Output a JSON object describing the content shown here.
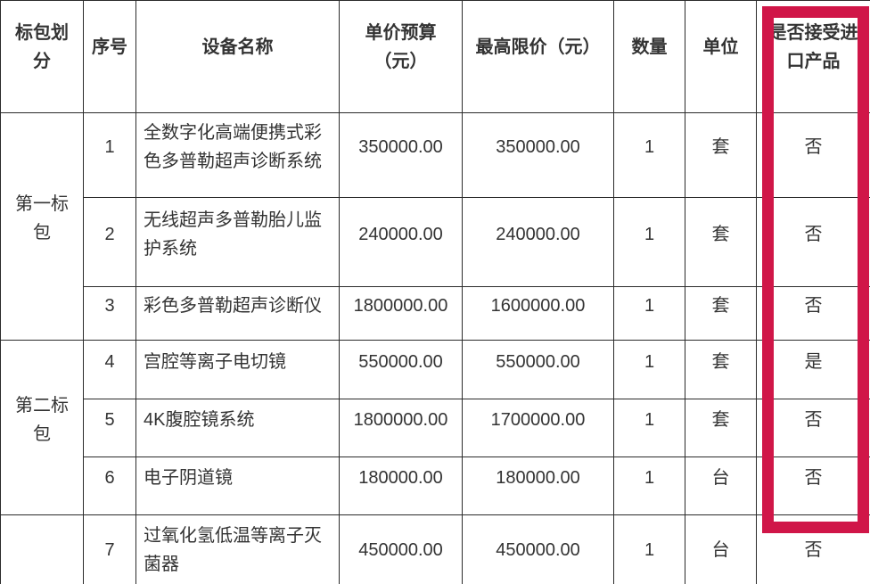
{
  "header": {
    "cols": [
      "标包划分",
      "序号",
      "设备名称",
      "单价预算\n（元）",
      "最高限价（元）",
      "数量",
      "单位",
      "是否接受进口产品"
    ]
  },
  "groups": [
    {
      "label": "第一标包",
      "rows": [
        {
          "seq": "1",
          "name": "全数字化高端便携式彩色多普勒超声诊断系统",
          "budget": "350000.00",
          "limit": "350000.00",
          "qty": "1",
          "unit": "套",
          "import_allowed": "否"
        },
        {
          "seq": "2",
          "name": "无线超声多普勒胎儿监护系统",
          "budget": "240000.00",
          "limit": "240000.00",
          "qty": "1",
          "unit": "套",
          "import_allowed": "否"
        },
        {
          "seq": "3",
          "name": "彩色多普勒超声诊断仪",
          "budget": "1800000.00",
          "limit": "1600000.00",
          "qty": "1",
          "unit": "套",
          "import_allowed": "否"
        }
      ]
    },
    {
      "label": "第二标包",
      "rows": [
        {
          "seq": "4",
          "name": "宫腔等离子电切镜",
          "budget": "550000.00",
          "limit": "550000.00",
          "qty": "1",
          "unit": "套",
          "import_allowed": "是"
        },
        {
          "seq": "5",
          "name": "4K腹腔镜系统",
          "budget": "1800000.00",
          "limit": "1700000.00",
          "qty": "1",
          "unit": "套",
          "import_allowed": "否"
        },
        {
          "seq": "6",
          "name": "电子阴道镜",
          "budget": "180000.00",
          "limit": "180000.00",
          "qty": "1",
          "unit": "台",
          "import_allowed": "否"
        }
      ]
    },
    {
      "label": "",
      "rows": [
        {
          "seq": "7",
          "name": "过氧化氢低温等离子灭菌器",
          "budget": "450000.00",
          "limit": "450000.00",
          "qty": "1",
          "unit": "台",
          "import_allowed": "否"
        }
      ]
    }
  ],
  "highlight": {
    "color": "#d01648",
    "target_column": "是否接受进口产品"
  }
}
